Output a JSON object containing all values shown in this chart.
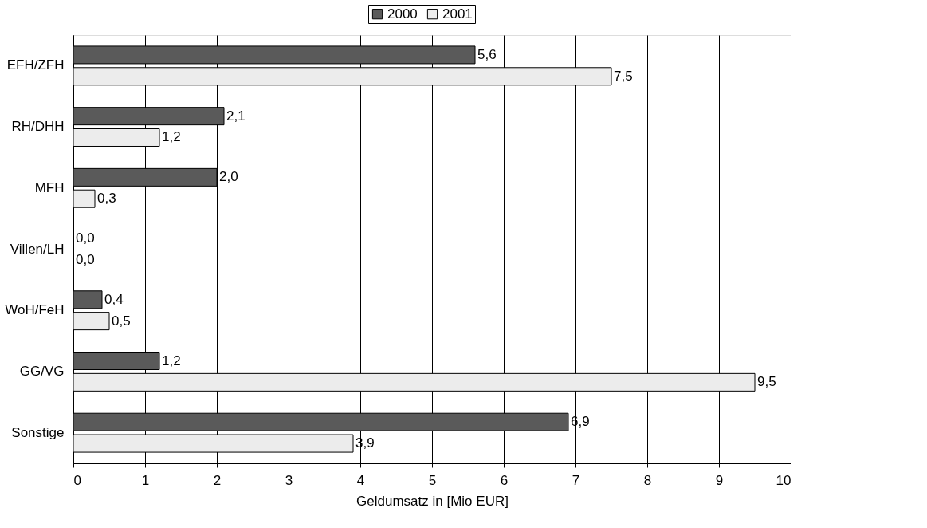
{
  "chart_data": {
    "type": "bar",
    "orientation": "horizontal",
    "xlabel": "Geldumsatz in [Mio EUR]",
    "categories": [
      "EFH/ZFH",
      "RH/DHH",
      "MFH",
      "Villen/LH",
      "WoH/FeH",
      "GG/VG",
      "Sonstige"
    ],
    "series": [
      {
        "name": "2000",
        "color": "#5a5a5a",
        "values": [
          5.6,
          2.1,
          2.0,
          0.0,
          0.4,
          1.2,
          6.9
        ],
        "value_labels": [
          "5,6",
          "2,1",
          "2,0",
          "0,0",
          "0,4",
          "1,2",
          "6,9"
        ]
      },
      {
        "name": "2001",
        "color": "#ececec",
        "values": [
          7.5,
          1.2,
          0.3,
          0.0,
          0.5,
          9.5,
          3.9
        ],
        "value_labels": [
          "7,5",
          "1,2",
          "0,3",
          "0,0",
          "0,5",
          "9,5",
          "3,9"
        ]
      }
    ],
    "xlim": [
      0,
      10
    ],
    "xticks": [
      0,
      1,
      2,
      3,
      4,
      5,
      6,
      7,
      8,
      9,
      10
    ],
    "grid": "x",
    "legend": "top"
  }
}
